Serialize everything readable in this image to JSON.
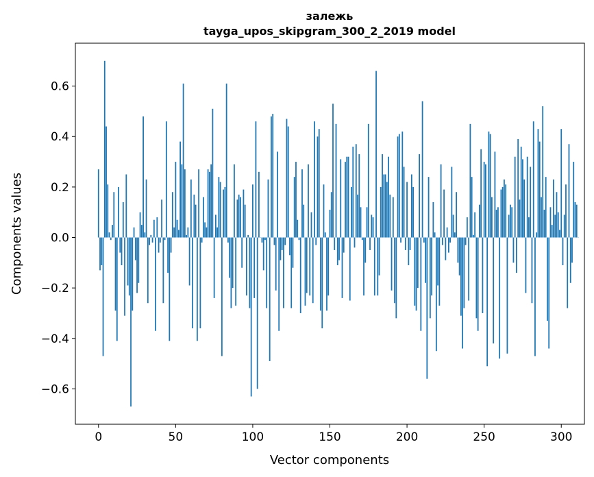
{
  "chart_data": {
    "type": "bar",
    "title_line1": "залежь",
    "title_line2": "tayga_upos_skipgram_300_2_2019 model",
    "xlabel": "Vector components",
    "ylabel": "Components values",
    "xlim": [
      -15,
      315
    ],
    "ylim": [
      -0.74,
      0.77
    ],
    "xticks": [
      0,
      50,
      100,
      150,
      200,
      250,
      300
    ],
    "xtick_labels": [
      "0",
      "50",
      "100",
      "150",
      "200",
      "250",
      "300"
    ],
    "yticks": [
      -0.6,
      -0.4,
      -0.2,
      0.0,
      0.2,
      0.4,
      0.6
    ],
    "ytick_labels": [
      "−0.6",
      "−0.4",
      "−0.2",
      "0.0",
      "0.2",
      "0.4",
      "0.6"
    ],
    "bar_color": "#1f77b4",
    "values": [
      0.27,
      -0.13,
      -0.11,
      -0.47,
      0.7,
      0.44,
      0.21,
      0.02,
      -0.01,
      0.05,
      0.18,
      -0.29,
      -0.41,
      0.2,
      -0.06,
      -0.11,
      0.14,
      -0.31,
      0.25,
      -0.19,
      -0.23,
      -0.67,
      -0.29,
      0.04,
      -0.09,
      -0.22,
      -0.18,
      0.1,
      0.05,
      0.48,
      0.02,
      0.23,
      -0.26,
      -0.03,
      0.01,
      -0.02,
      0.07,
      -0.37,
      0.08,
      -0.06,
      -0.02,
      0.15,
      -0.26,
      -0.01,
      0.46,
      -0.14,
      -0.41,
      -0.06,
      0.18,
      0.04,
      0.3,
      0.07,
      0.03,
      0.38,
      0.29,
      0.61,
      0.27,
      0.01,
      0.04,
      -0.19,
      0.23,
      -0.36,
      0.17,
      0.13,
      -0.41,
      0.27,
      -0.36,
      -0.02,
      0.16,
      0.06,
      0.04,
      0.27,
      0.26,
      0.29,
      0.51,
      -0.24,
      0.09,
      0.04,
      0.24,
      0.22,
      -0.47,
      0.19,
      0.2,
      0.61,
      -0.02,
      -0.16,
      -0.28,
      -0.2,
      0.29,
      -0.27,
      0.15,
      0.17,
      0.16,
      -0.12,
      0.19,
      0.13,
      -0.23,
      0.01,
      -0.28,
      -0.63,
      0.21,
      -0.24,
      0.46,
      -0.6,
      0.26,
      0.0,
      -0.02,
      -0.13,
      -0.01,
      -0.28,
      0.23,
      -0.49,
      0.48,
      0.49,
      -0.03,
      -0.21,
      0.34,
      -0.37,
      -0.09,
      -0.05,
      -0.28,
      -0.03,
      0.47,
      0.44,
      -0.07,
      -0.28,
      -0.12,
      0.24,
      0.3,
      0.07,
      -0.01,
      -0.3,
      0.27,
      0.13,
      -0.27,
      -0.22,
      0.29,
      -0.23,
      0.1,
      -0.26,
      0.46,
      -0.03,
      0.4,
      0.43,
      -0.29,
      -0.36,
      0.21,
      0.02,
      -0.29,
      -0.23,
      0.11,
      0.18,
      0.53,
      -0.05,
      0.45,
      -0.11,
      -0.09,
      0.31,
      -0.24,
      -0.06,
      0.3,
      0.32,
      0.32,
      -0.25,
      0.2,
      0.36,
      -0.04,
      0.37,
      0.17,
      0.33,
      0.12,
      -0.01,
      -0.23,
      -0.1,
      0.12,
      0.45,
      -0.05,
      0.09,
      0.08,
      -0.23,
      0.66,
      -0.23,
      -0.15,
      0.2,
      0.33,
      0.25,
      0.25,
      0.22,
      0.32,
      0.17,
      -0.21,
      0.16,
      -0.26,
      -0.32,
      0.4,
      0.41,
      -0.02,
      0.42,
      0.28,
      -0.05,
      0.22,
      -0.11,
      -0.05,
      0.25,
      0.2,
      -0.27,
      -0.29,
      -0.2,
      0.33,
      -0.37,
      0.54,
      -0.02,
      -0.18,
      -0.56,
      0.24,
      -0.32,
      -0.23,
      0.14,
      0.02,
      -0.45,
      -0.19,
      -0.27,
      0.29,
      -0.03,
      0.19,
      -0.09,
      0.04,
      -0.06,
      -0.02,
      0.28,
      0.09,
      0.02,
      0.18,
      -0.1,
      -0.15,
      -0.31,
      -0.44,
      -0.28,
      -0.03,
      0.08,
      -0.25,
      0.45,
      0.24,
      0.01,
      0.1,
      -0.32,
      -0.37,
      0.13,
      0.35,
      -0.3,
      0.3,
      0.29,
      -0.51,
      0.42,
      0.41,
      0.16,
      -0.42,
      0.34,
      0.11,
      0.12,
      -0.48,
      0.19,
      0.2,
      0.23,
      0.21,
      -0.46,
      0.09,
      0.13,
      0.12,
      -0.1,
      0.32,
      -0.14,
      0.39,
      0.15,
      0.36,
      0.31,
      0.23,
      -0.22,
      0.32,
      0.08,
      0.28,
      -0.26,
      0.46,
      -0.47,
      0.02,
      0.43,
      0.38,
      0.16,
      0.52,
      0.11,
      0.24,
      -0.33,
      -0.44,
      0.12,
      0.05,
      0.23,
      0.09,
      0.18,
      0.1,
      0.03,
      0.43,
      -0.11,
      0.09,
      0.21,
      -0.28,
      0.37,
      -0.18,
      -0.1,
      0.3,
      0.14,
      0.13,
      0.0
    ]
  }
}
